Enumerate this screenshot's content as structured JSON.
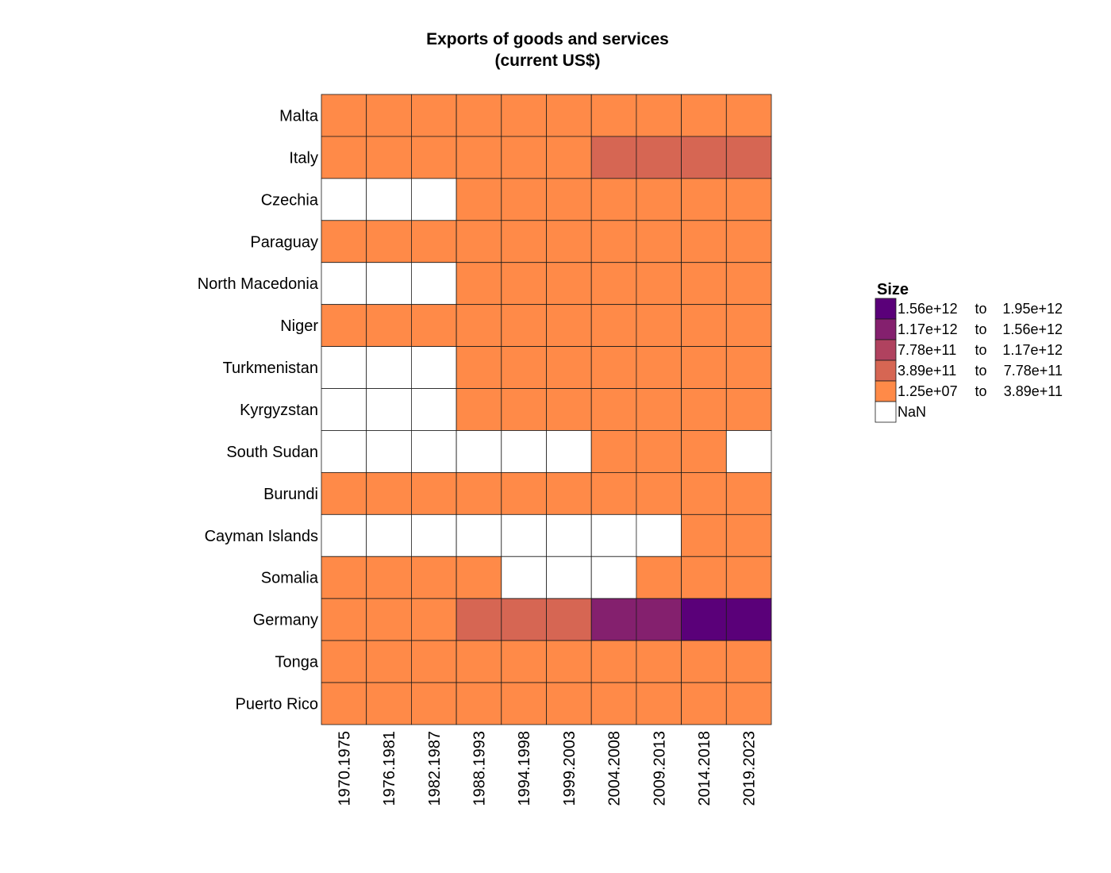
{
  "chart_data": {
    "type": "heatmap",
    "title_lines": [
      "Exports of goods and services",
      "(current US$)"
    ],
    "xlabel": "",
    "ylabel": "",
    "columns": [
      "1970.1975",
      "1976.1981",
      "1982.1987",
      "1988.1993",
      "1994.1998",
      "1999.2003",
      "2004.2008",
      "2009.2013",
      "2014.2018",
      "2019.2023"
    ],
    "rows": [
      "Malta",
      "Italy",
      "Czechia",
      "Paraguay",
      "North Macedonia",
      "Niger",
      "Turkmenistan",
      "Kyrgyzstan",
      "South Sudan",
      "Burundi",
      "Cayman Islands",
      "Somalia",
      "Germany",
      "Tonga",
      "Puerto Rico"
    ],
    "bins": [
      {
        "from": "1.56e+12",
        "to": "1.95e+12",
        "color": "#5a0079"
      },
      {
        "from": "1.17e+12",
        "to": "1.56e+12",
        "color": "#84206e"
      },
      {
        "from": "7.78e+11",
        "to": "1.17e+12",
        "color": "#b0425f"
      },
      {
        "from": "3.89e+11",
        "to": "7.78e+11",
        "color": "#d66653"
      },
      {
        "from": "1.25e+07",
        "to": "3.89e+11",
        "color": "#ff8a48"
      }
    ],
    "nan_label": "NaN",
    "nan_color": "#ffffff",
    "cells": [
      [
        4,
        4,
        4,
        4,
        4,
        4,
        4,
        4,
        4,
        4
      ],
      [
        4,
        4,
        4,
        4,
        4,
        4,
        3,
        3,
        3,
        3
      ],
      [
        null,
        null,
        null,
        4,
        4,
        4,
        4,
        4,
        4,
        4
      ],
      [
        4,
        4,
        4,
        4,
        4,
        4,
        4,
        4,
        4,
        4
      ],
      [
        null,
        null,
        null,
        4,
        4,
        4,
        4,
        4,
        4,
        4
      ],
      [
        4,
        4,
        4,
        4,
        4,
        4,
        4,
        4,
        4,
        4
      ],
      [
        null,
        null,
        null,
        4,
        4,
        4,
        4,
        4,
        4,
        4
      ],
      [
        null,
        null,
        null,
        4,
        4,
        4,
        4,
        4,
        4,
        4
      ],
      [
        null,
        null,
        null,
        null,
        null,
        null,
        4,
        4,
        4,
        null
      ],
      [
        4,
        4,
        4,
        4,
        4,
        4,
        4,
        4,
        4,
        4
      ],
      [
        null,
        null,
        null,
        null,
        null,
        null,
        null,
        null,
        4,
        4
      ],
      [
        4,
        4,
        4,
        4,
        null,
        null,
        null,
        4,
        4,
        4
      ],
      [
        4,
        4,
        4,
        3,
        3,
        3,
        1,
        1,
        0,
        0
      ],
      [
        4,
        4,
        4,
        4,
        4,
        4,
        4,
        4,
        4,
        4
      ],
      [
        4,
        4,
        4,
        4,
        4,
        4,
        4,
        4,
        4,
        4
      ]
    ],
    "legend": {
      "title": "Size",
      "position": "right",
      "separator": "to"
    },
    "grid": false
  }
}
